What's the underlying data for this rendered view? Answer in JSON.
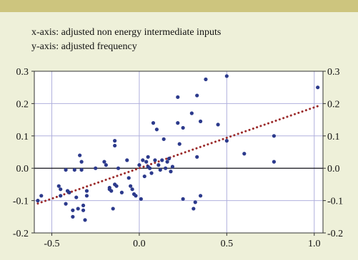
{
  "description": {
    "x_line": "x-axis: adjusted non energy intermediate inputs",
    "y_line": "y-axis: adjusted frequency"
  },
  "colors": {
    "background": "#eef0d9",
    "top_band": "#cdc57e",
    "plot_background": "#ffffff",
    "grid": "#b0b0dd",
    "points": "#2c3a8c",
    "trend_line": "#9b2a2a"
  },
  "chart_data": {
    "type": "scatter",
    "xlim": [
      -0.6,
      1.05
    ],
    "ylim": [
      -0.2,
      0.3
    ],
    "x_ticks": [
      -0.5,
      0.0,
      0.5,
      1.0
    ],
    "x_tick_labels": [
      "-0.5",
      "0.0",
      "0.5",
      "1.0"
    ],
    "y_ticks": [
      -0.2,
      -0.1,
      0.0,
      0.1,
      0.2,
      0.3
    ],
    "y_tick_labels": [
      "-0.2",
      "-0.1",
      "0.0",
      "0.1",
      "0.2",
      "0.3"
    ],
    "y_axis_both_sides": true,
    "grid": true,
    "zero_line": true,
    "trend_line": {
      "style": "dotted",
      "from": [
        -0.58,
        -0.109
      ],
      "to": [
        1.02,
        0.192
      ]
    },
    "points": [
      [
        -0.58,
        -0.1
      ],
      [
        -0.56,
        -0.085
      ],
      [
        -0.46,
        -0.055
      ],
      [
        -0.45,
        -0.065
      ],
      [
        -0.45,
        -0.085
      ],
      [
        -0.42,
        -0.005
      ],
      [
        -0.42,
        -0.11
      ],
      [
        -0.41,
        -0.07
      ],
      [
        -0.4,
        -0.075
      ],
      [
        -0.38,
        -0.15
      ],
      [
        -0.38,
        -0.13
      ],
      [
        -0.37,
        -0.005
      ],
      [
        -0.36,
        -0.09
      ],
      [
        -0.35,
        -0.125
      ],
      [
        -0.34,
        0.04
      ],
      [
        -0.33,
        0.02
      ],
      [
        -0.33,
        -0.005
      ],
      [
        -0.32,
        -0.115
      ],
      [
        -0.32,
        -0.13
      ],
      [
        -0.31,
        -0.16
      ],
      [
        -0.3,
        -0.07
      ],
      [
        -0.3,
        -0.085
      ],
      [
        -0.25,
        0.0
      ],
      [
        -0.2,
        0.02
      ],
      [
        -0.19,
        0.01
      ],
      [
        -0.17,
        -0.06
      ],
      [
        -0.17,
        -0.065
      ],
      [
        -0.16,
        -0.07
      ],
      [
        -0.15,
        -0.125
      ],
      [
        -0.14,
        0.07
      ],
      [
        -0.14,
        0.085
      ],
      [
        -0.14,
        -0.05
      ],
      [
        -0.13,
        -0.055
      ],
      [
        -0.12,
        0.0
      ],
      [
        -0.1,
        -0.075
      ],
      [
        -0.07,
        0.025
      ],
      [
        -0.06,
        -0.03
      ],
      [
        -0.05,
        -0.055
      ],
      [
        -0.04,
        -0.065
      ],
      [
        -0.03,
        -0.08
      ],
      [
        -0.02,
        -0.085
      ],
      [
        0.0,
        0.01
      ],
      [
        0.01,
        -0.095
      ],
      [
        0.02,
        0.025
      ],
      [
        0.03,
        -0.025
      ],
      [
        0.04,
        0.02
      ],
      [
        0.05,
        0.005
      ],
      [
        0.05,
        0.035
      ],
      [
        0.06,
        0.0
      ],
      [
        0.07,
        -0.015
      ],
      [
        0.08,
        0.14
      ],
      [
        0.09,
        0.025
      ],
      [
        0.1,
        0.12
      ],
      [
        0.11,
        0.01
      ],
      [
        0.12,
        -0.005
      ],
      [
        0.13,
        0.025
      ],
      [
        0.14,
        0.09
      ],
      [
        0.15,
        0.0
      ],
      [
        0.16,
        0.02
      ],
      [
        0.17,
        0.03
      ],
      [
        0.18,
        -0.01
      ],
      [
        0.19,
        0.005
      ],
      [
        0.22,
        0.22
      ],
      [
        0.22,
        0.14
      ],
      [
        0.23,
        0.075
      ],
      [
        0.25,
        0.125
      ],
      [
        0.25,
        -0.095
      ],
      [
        0.3,
        0.17
      ],
      [
        0.31,
        -0.125
      ],
      [
        0.32,
        -0.105
      ],
      [
        0.33,
        0.035
      ],
      [
        0.33,
        0.225
      ],
      [
        0.35,
        0.145
      ],
      [
        0.35,
        -0.085
      ],
      [
        0.38,
        0.275
      ],
      [
        0.45,
        0.135
      ],
      [
        0.5,
        0.085
      ],
      [
        0.5,
        0.285
      ],
      [
        0.6,
        0.045
      ],
      [
        0.77,
        0.1
      ],
      [
        0.77,
        0.02
      ],
      [
        1.02,
        0.25
      ]
    ]
  }
}
